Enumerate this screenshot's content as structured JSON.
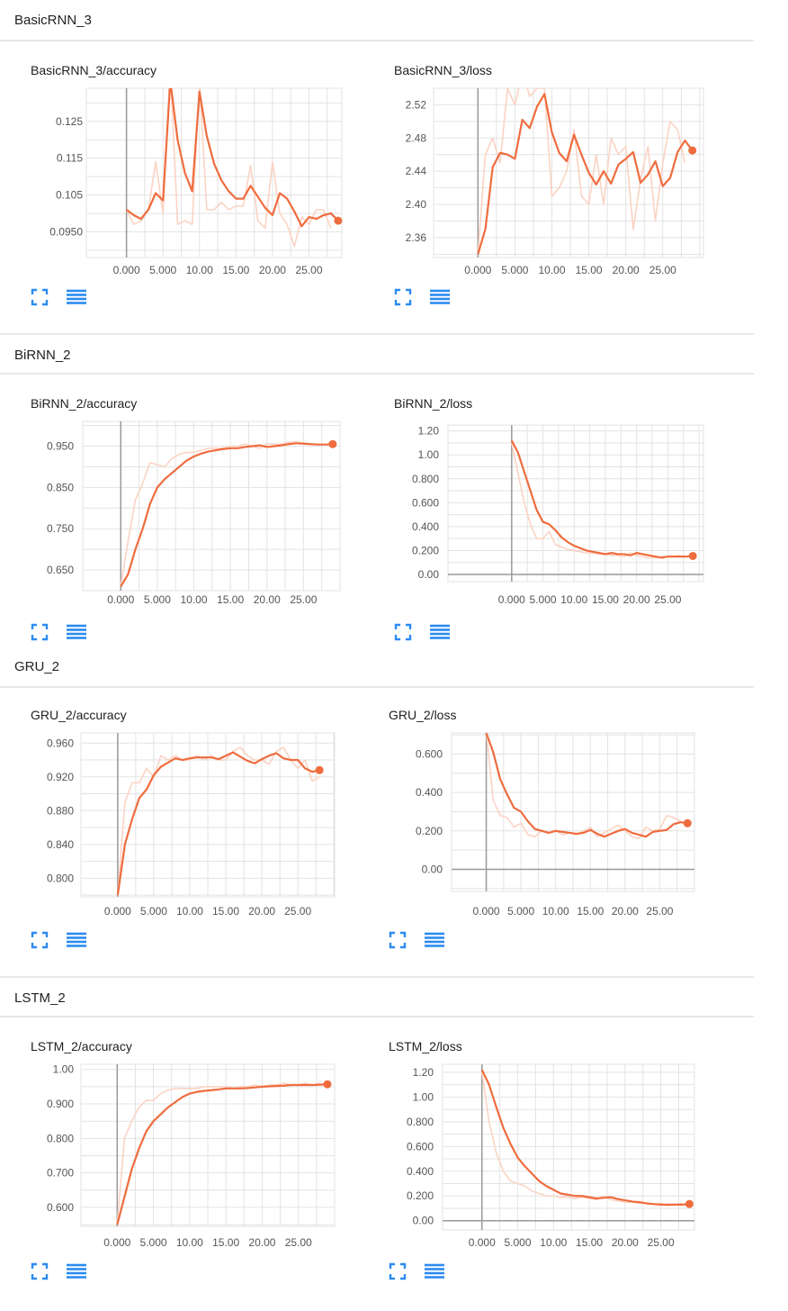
{
  "colors": {
    "accent": "#ef6c3e",
    "raw": "#fbd3c4",
    "grid": "#e3e3e3",
    "axis": "#999999",
    "icon": "#2c8bf1"
  },
  "icons": {
    "expand": "fullscreen-icon",
    "data": "list-icon"
  },
  "sections": [
    {
      "title": "BasicRNN_3"
    },
    {
      "title": "BiRNN_2"
    },
    {
      "title": "GRU_2"
    },
    {
      "title": "LSTM_2"
    }
  ],
  "chart_data": [
    {
      "title": "BasicRNN_3/accuracy",
      "type": "line",
      "xlabel": "",
      "ylabel": "",
      "xlim": [
        -5.5,
        29.5
      ],
      "ylim": [
        0.088,
        0.134
      ],
      "x_ticks": [
        "0.000",
        "5.000",
        "10.00",
        "15.00",
        "20.00",
        "25.00"
      ],
      "y_ticks": [
        "0.125",
        "0.115",
        "0.105",
        "0.0950"
      ],
      "y_tick_values": [
        0.125,
        0.115,
        0.105,
        0.095
      ],
      "grid": true,
      "series": [
        {
          "label": "raw",
          "values": [
            0.101,
            0.097,
            0.098,
            0.101,
            0.114,
            0.1,
            0.14,
            0.097,
            0.098,
            0.097,
            0.136,
            0.101,
            0.101,
            0.103,
            0.101,
            0.102,
            0.102,
            0.113,
            0.098,
            0.096,
            0.114,
            0.1,
            0.097,
            0.091,
            0.099,
            0.097,
            0.101,
            0.101,
            0.096
          ]
        },
        {
          "label": "smoothed",
          "values": [
            0.101,
            0.0995,
            0.0985,
            0.101,
            0.1055,
            0.1035,
            0.136,
            0.12,
            0.111,
            0.106,
            0.133,
            0.121,
            0.1135,
            0.109,
            0.106,
            0.104,
            0.104,
            0.1075,
            0.1045,
            0.1015,
            0.0995,
            0.1055,
            0.104,
            0.1005,
            0.0965,
            0.099,
            0.0985,
            0.0995,
            0.1,
            0.098
          ]
        }
      ]
    },
    {
      "title": "BasicRNN_3/loss",
      "type": "line",
      "xlabel": "",
      "ylabel": "",
      "xlim": [
        -6,
        30.5
      ],
      "ylim": [
        2.336,
        2.54
      ],
      "x_ticks": [
        "0.000",
        "5.000",
        "10.00",
        "15.00",
        "20.00",
        "25.00"
      ],
      "y_ticks": [
        "2.52",
        "2.48",
        "2.44",
        "2.40",
        "2.36"
      ],
      "y_tick_values": [
        2.52,
        2.48,
        2.44,
        2.4,
        2.36
      ],
      "grid": true,
      "series": [
        {
          "label": "raw",
          "values": [
            2.34,
            2.46,
            2.48,
            2.45,
            2.54,
            2.52,
            2.56,
            2.53,
            2.54,
            2.54,
            2.41,
            2.42,
            2.44,
            2.49,
            2.41,
            2.4,
            2.46,
            2.4,
            2.48,
            2.46,
            2.47,
            2.37,
            2.43,
            2.47,
            2.38,
            2.45,
            2.5,
            2.49,
            2.45
          ]
        },
        {
          "label": "smoothed",
          "values": [
            2.34,
            2.37,
            2.445,
            2.462,
            2.46,
            2.455,
            2.502,
            2.492,
            2.518,
            2.533,
            2.487,
            2.462,
            2.452,
            2.484,
            2.46,
            2.438,
            2.424,
            2.44,
            2.425,
            2.448,
            2.455,
            2.463,
            2.426,
            2.436,
            2.452,
            2.422,
            2.432,
            2.463,
            2.477,
            2.465
          ]
        }
      ]
    },
    {
      "title": "BiRNN_2/accuracy",
      "type": "line",
      "xlabel": "",
      "ylabel": "",
      "xlim": [
        -5.2,
        30
      ],
      "ylim": [
        0.6,
        1.01
      ],
      "x_ticks": [
        "0.000",
        "5.000",
        "10.00",
        "15.00",
        "20.00",
        "25.00"
      ],
      "y_ticks": [
        "0.950",
        "0.850",
        "0.750",
        "0.650"
      ],
      "y_tick_values": [
        0.95,
        0.85,
        0.75,
        0.65
      ],
      "grid": true,
      "series": [
        {
          "label": "raw",
          "values": [
            0.61,
            0.72,
            0.82,
            0.86,
            0.91,
            0.905,
            0.9,
            0.92,
            0.93,
            0.935,
            0.935,
            0.94,
            0.945,
            0.945,
            0.945,
            0.95,
            0.95,
            0.955,
            0.95,
            0.945,
            0.955,
            0.955,
            0.955,
            0.96,
            0.96,
            0.958,
            0.955,
            0.955
          ]
        },
        {
          "label": "smoothed",
          "values": [
            0.61,
            0.64,
            0.7,
            0.75,
            0.81,
            0.85,
            0.87,
            0.885,
            0.9,
            0.915,
            0.925,
            0.932,
            0.937,
            0.94,
            0.943,
            0.945,
            0.945,
            0.948,
            0.95,
            0.952,
            0.948,
            0.95,
            0.952,
            0.955,
            0.957,
            0.956,
            0.955,
            0.954,
            0.954,
            0.955
          ]
        }
      ]
    },
    {
      "title": "BiRNN_2/loss",
      "type": "line",
      "xlabel": "",
      "ylabel": "",
      "xlim": [
        -10.2,
        30.7
      ],
      "ylim": [
        -0.06,
        1.25
      ],
      "x_ticks": [
        "0.000",
        "5.000",
        "10.00",
        "15.00",
        "20.00",
        "25.00"
      ],
      "y_ticks": [
        "1.20",
        "1.00",
        "0.800",
        "0.600",
        "0.400",
        "0.200",
        "0.00"
      ],
      "y_tick_values": [
        1.2,
        1.0,
        0.8,
        0.6,
        0.4,
        0.2,
        0.0
      ],
      "grid": true,
      "series": [
        {
          "label": "raw",
          "values": [
            1.1,
            0.85,
            0.6,
            0.42,
            0.3,
            0.3,
            0.36,
            0.25,
            0.23,
            0.21,
            0.2,
            0.19,
            0.18,
            0.18,
            0.17,
            0.17,
            0.16,
            0.16,
            0.15,
            0.18,
            0.16,
            0.15,
            0.14,
            0.14,
            0.15,
            0.15,
            0.15,
            0.16
          ]
        },
        {
          "label": "smoothed",
          "values": [
            1.12,
            1.02,
            0.86,
            0.7,
            0.54,
            0.44,
            0.42,
            0.37,
            0.31,
            0.27,
            0.24,
            0.22,
            0.2,
            0.19,
            0.18,
            0.17,
            0.18,
            0.17,
            0.17,
            0.16,
            0.18,
            0.17,
            0.16,
            0.15,
            0.14,
            0.15,
            0.15,
            0.15,
            0.15,
            0.155
          ]
        }
      ]
    },
    {
      "title": "GRU_2/accuracy",
      "type": "line",
      "xlabel": "",
      "ylabel": "",
      "xlim": [
        -5.1,
        30.1
      ],
      "ylim": [
        0.778,
        0.972
      ],
      "x_ticks": [
        "0.000",
        "5.000",
        "10.00",
        "15.00",
        "20.00",
        "25.00"
      ],
      "y_ticks": [
        "0.960",
        "0.920",
        "0.880",
        "0.840",
        "0.800"
      ],
      "y_tick_values": [
        0.96,
        0.92,
        0.88,
        0.84,
        0.8
      ],
      "grid": true,
      "series": [
        {
          "label": "raw",
          "values": [
            0.78,
            0.89,
            0.913,
            0.913,
            0.93,
            0.92,
            0.945,
            0.94,
            0.945,
            0.94,
            0.94,
            0.945,
            0.94,
            0.945,
            0.94,
            0.94,
            0.95,
            0.955,
            0.945,
            0.94,
            0.94,
            0.935,
            0.95,
            0.955,
            0.94,
            0.93,
            0.94,
            0.915,
            0.92
          ]
        },
        {
          "label": "smoothed",
          "values": [
            0.78,
            0.84,
            0.87,
            0.895,
            0.905,
            0.922,
            0.932,
            0.937,
            0.942,
            0.94,
            0.942,
            0.943,
            0.943,
            0.943,
            0.941,
            0.945,
            0.949,
            0.944,
            0.939,
            0.936,
            0.941,
            0.945,
            0.948,
            0.942,
            0.94,
            0.94,
            0.93,
            0.926,
            0.928
          ]
        }
      ]
    },
    {
      "title": "GRU_2/loss",
      "type": "line",
      "xlabel": "",
      "ylabel": "",
      "xlim": [
        -5,
        30
      ],
      "ylim": [
        -0.115,
        0.71
      ],
      "x_ticks": [
        "0.000",
        "5.000",
        "10.00",
        "15.00",
        "20.00",
        "25.00"
      ],
      "y_ticks": [
        "0.600",
        "0.400",
        "0.200",
        "0.00"
      ],
      "y_tick_values": [
        0.6,
        0.4,
        0.2,
        0.0
      ],
      "grid": true,
      "series": [
        {
          "label": "raw",
          "values": [
            0.72,
            0.36,
            0.28,
            0.27,
            0.22,
            0.24,
            0.18,
            0.17,
            0.2,
            0.19,
            0.2,
            0.18,
            0.19,
            0.18,
            0.2,
            0.22,
            0.17,
            0.19,
            0.21,
            0.23,
            0.2,
            0.17,
            0.16,
            0.22,
            0.2,
            0.21,
            0.28,
            0.27,
            0.25
          ]
        },
        {
          "label": "smoothed",
          "values": [
            0.71,
            0.61,
            0.47,
            0.39,
            0.32,
            0.3,
            0.25,
            0.21,
            0.2,
            0.19,
            0.2,
            0.195,
            0.19,
            0.185,
            0.19,
            0.205,
            0.185,
            0.17,
            0.185,
            0.2,
            0.21,
            0.19,
            0.18,
            0.17,
            0.195,
            0.2,
            0.205,
            0.235,
            0.245,
            0.24
          ]
        }
      ]
    },
    {
      "title": "LSTM_2/accuracy",
      "type": "line",
      "xlabel": "",
      "ylabel": "",
      "xlim": [
        -5,
        30
      ],
      "ylim": [
        0.545,
        1.015
      ],
      "x_ticks": [
        "0.000",
        "5.000",
        "10.00",
        "15.00",
        "20.00",
        "25.00"
      ],
      "y_ticks": [
        "1.00",
        "0.900",
        "0.800",
        "0.700",
        "0.600"
      ],
      "y_tick_values": [
        1.0,
        0.9,
        0.8,
        0.7,
        0.6
      ],
      "grid": true,
      "series": [
        {
          "label": "raw",
          "values": [
            0.55,
            0.8,
            0.85,
            0.89,
            0.91,
            0.91,
            0.93,
            0.94,
            0.945,
            0.945,
            0.945,
            0.945,
            0.95,
            0.95,
            0.95,
            0.95,
            0.945,
            0.95,
            0.95,
            0.955,
            0.95,
            0.955,
            0.955,
            0.96,
            0.955,
            0.955,
            0.96,
            0.955,
            0.96
          ]
        },
        {
          "label": "smoothed",
          "values": [
            0.55,
            0.63,
            0.71,
            0.77,
            0.82,
            0.85,
            0.87,
            0.89,
            0.905,
            0.92,
            0.93,
            0.935,
            0.938,
            0.94,
            0.942,
            0.945,
            0.945,
            0.945,
            0.946,
            0.948,
            0.95,
            0.951,
            0.952,
            0.953,
            0.955,
            0.955,
            0.955,
            0.955,
            0.956,
            0.957
          ]
        }
      ]
    },
    {
      "title": "LSTM_2/loss",
      "type": "line",
      "xlabel": "",
      "ylabel": "",
      "xlim": [
        -5.5,
        29.7
      ],
      "ylim": [
        -0.075,
        1.265
      ],
      "x_ticks": [
        "0.000",
        "5.000",
        "10.00",
        "15.00",
        "20.00",
        "25.00"
      ],
      "y_ticks": [
        "1.20",
        "1.00",
        "0.800",
        "0.600",
        "0.400",
        "0.200",
        "0.00"
      ],
      "y_tick_values": [
        1.2,
        1.0,
        0.8,
        0.6,
        0.4,
        0.2,
        0.0
      ],
      "grid": true,
      "series": [
        {
          "label": "raw",
          "values": [
            1.2,
            0.8,
            0.55,
            0.4,
            0.32,
            0.3,
            0.28,
            0.24,
            0.22,
            0.2,
            0.2,
            0.19,
            0.19,
            0.18,
            0.19,
            0.18,
            0.17,
            0.2,
            0.17,
            0.16,
            0.15,
            0.15,
            0.14,
            0.14,
            0.13,
            0.14,
            0.12,
            0.13,
            0.14
          ]
        },
        {
          "label": "smoothed",
          "values": [
            1.22,
            1.1,
            0.92,
            0.75,
            0.62,
            0.51,
            0.44,
            0.38,
            0.32,
            0.28,
            0.25,
            0.22,
            0.21,
            0.2,
            0.2,
            0.19,
            0.18,
            0.185,
            0.19,
            0.175,
            0.165,
            0.155,
            0.15,
            0.14,
            0.135,
            0.13,
            0.13,
            0.13,
            0.13,
            0.135
          ]
        }
      ]
    }
  ]
}
